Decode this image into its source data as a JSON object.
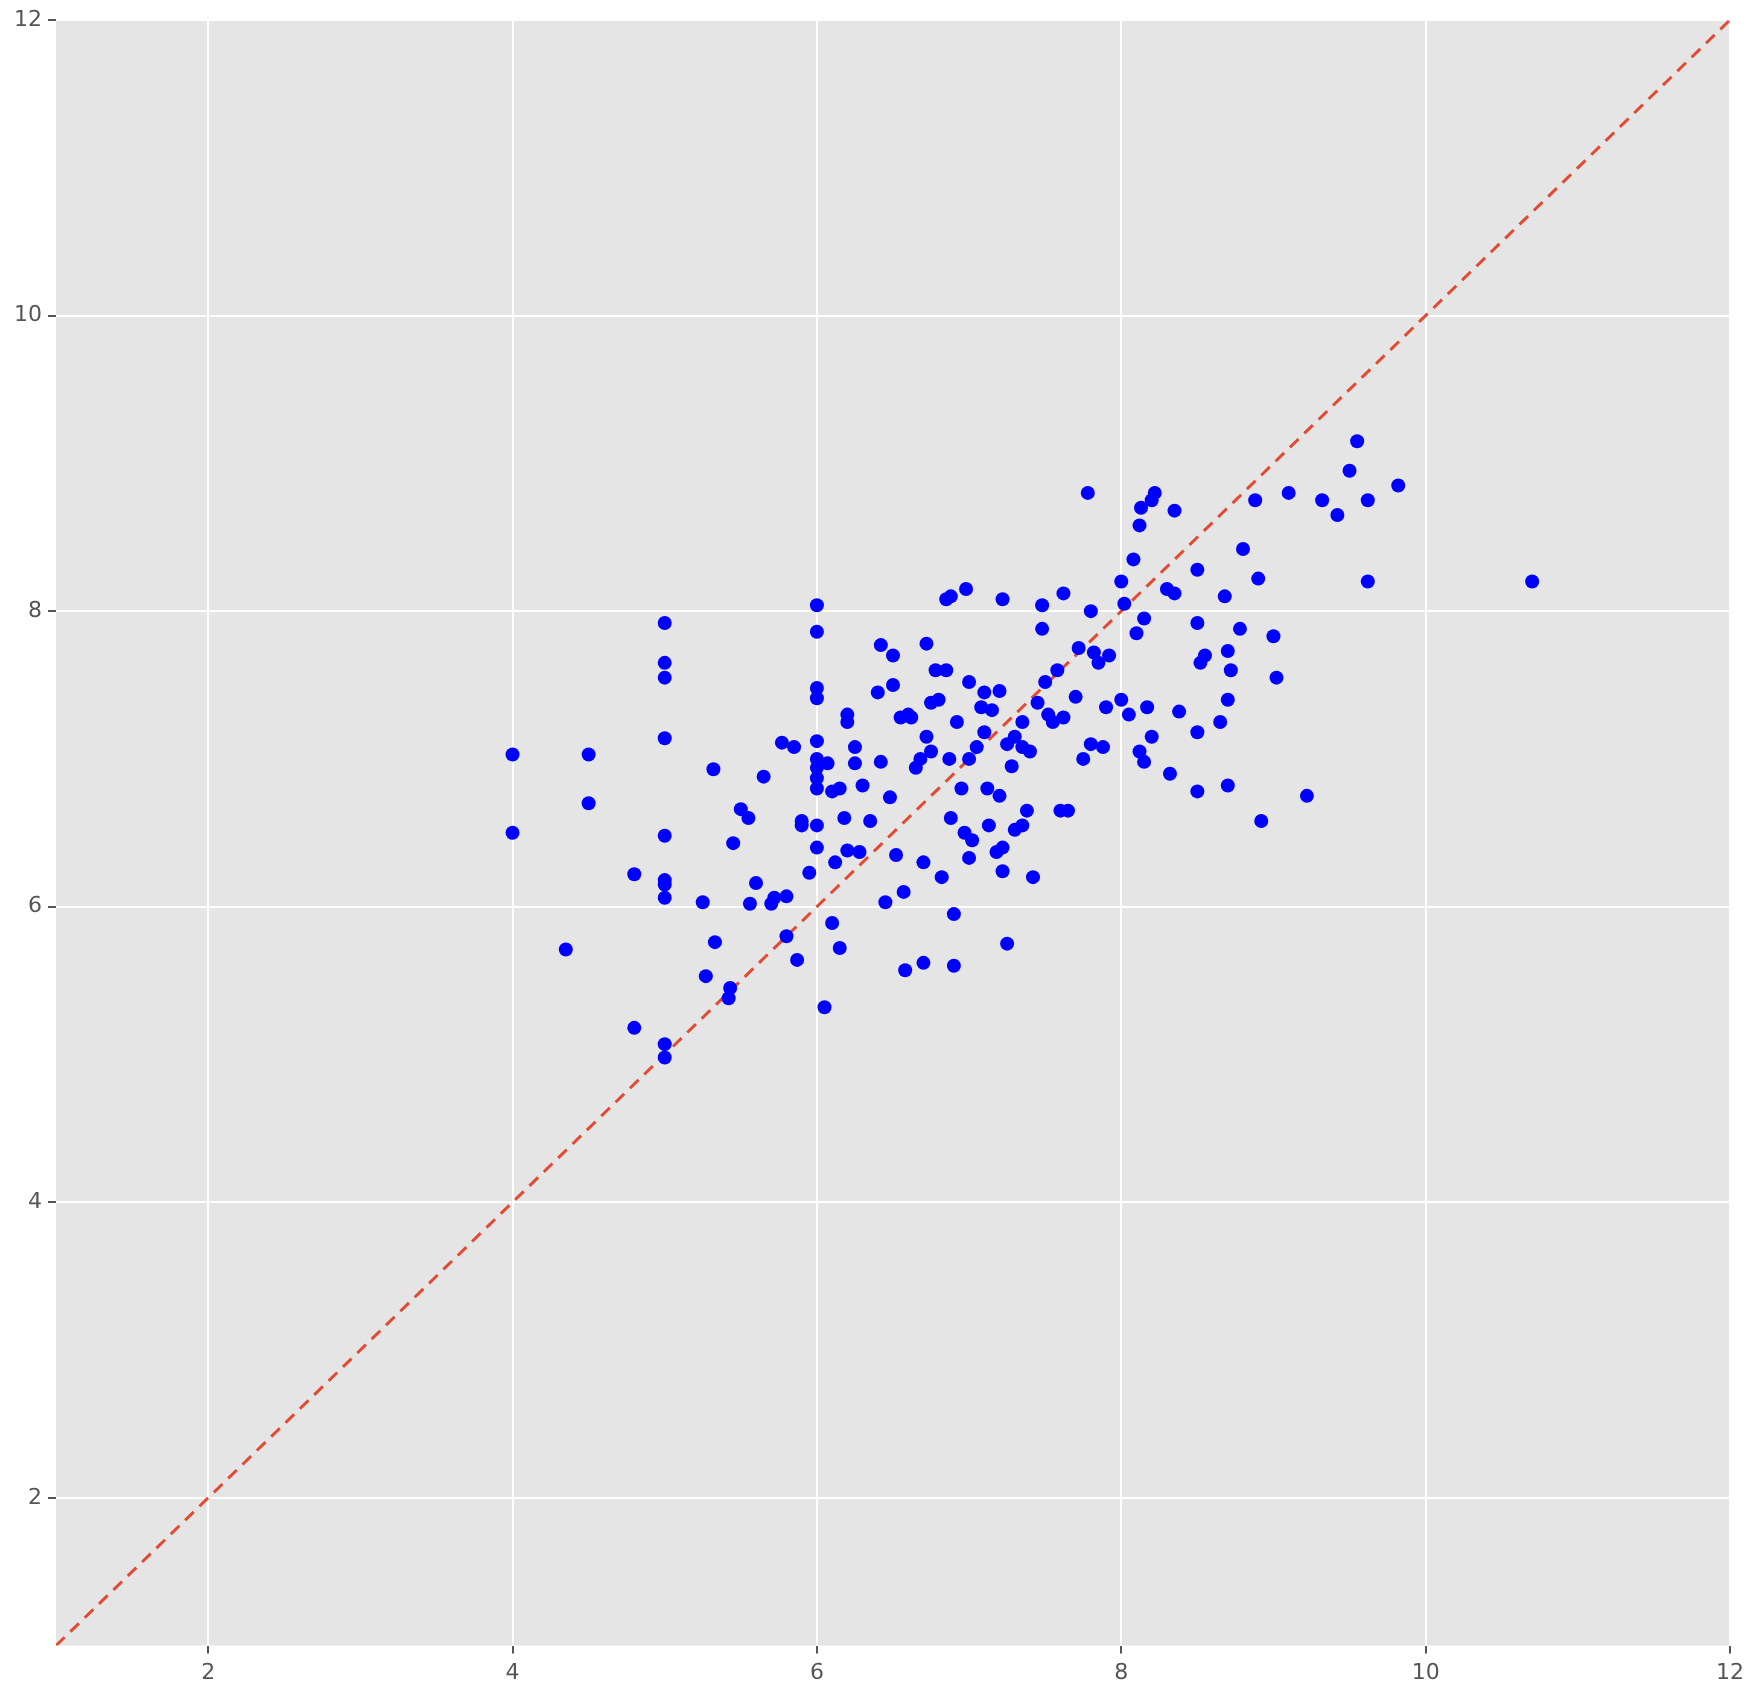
{
  "chart_data": {
    "type": "scatter",
    "xlim": [
      1,
      12
    ],
    "ylim": [
      1,
      12
    ],
    "xticks": [
      2,
      4,
      6,
      8,
      10,
      12
    ],
    "yticks": [
      2,
      4,
      6,
      8,
      10,
      12
    ],
    "grid": true,
    "legend": false,
    "marker": "circle",
    "series": [
      {
        "type": "scatter",
        "color": "#0000ff",
        "x": [
          4,
          4,
          4.5,
          4.5,
          4.35,
          4.8,
          4.8,
          5,
          5,
          5,
          5,
          5,
          5,
          5,
          5,
          5,
          5,
          5.25,
          5.27,
          5.32,
          5.33,
          5.42,
          5.43,
          5.45,
          5.5,
          5.55,
          5.56,
          5.6,
          5.65,
          5.7,
          5.72,
          5.77,
          5.8,
          5.8,
          5.85,
          5.87,
          5.9,
          5.9,
          5.95,
          6,
          6,
          6,
          6,
          6,
          6,
          6,
          6,
          6,
          6,
          6,
          6.05,
          6.07,
          6.1,
          6.1,
          6.12,
          6.15,
          6.15,
          6.18,
          6.2,
          6.2,
          6.2,
          6.25,
          6.25,
          6.28,
          6.3,
          6.35,
          6.4,
          6.42,
          6.42,
          6.45,
          6.48,
          6.5,
          6.5,
          6.52,
          6.55,
          6.57,
          6.58,
          6.6,
          6.62,
          6.65,
          6.68,
          6.7,
          6.7,
          6.72,
          6.72,
          6.75,
          6.75,
          6.78,
          6.8,
          6.82,
          6.85,
          6.88,
          6.85,
          6.87,
          6.88,
          6.9,
          6.9,
          6.92,
          6.95,
          6.97,
          6.98,
          7,
          7,
          7,
          7.02,
          7.05,
          7.08,
          7.1,
          7.1,
          7.12,
          7.13,
          7.15,
          7.18,
          7.2,
          7.2,
          7.22,
          7.22,
          7.22,
          7.25,
          7.25,
          7.28,
          7.3,
          7.3,
          7.35,
          7.35,
          7.35,
          7.38,
          7.4,
          7.42,
          7.45,
          7.48,
          7.48,
          7.5,
          7.52,
          7.55,
          7.58,
          7.6,
          7.62,
          7.62,
          7.65,
          7.7,
          7.72,
          7.75,
          7.78,
          7.8,
          7.8,
          7.82,
          7.85,
          7.88,
          7.9,
          7.92,
          8,
          8,
          8.02,
          8.05,
          8.08,
          8.1,
          8.12,
          8.12,
          8.13,
          8.15,
          8.15,
          8.17,
          8.2,
          8.2,
          8.22,
          8.3,
          8.32,
          8.35,
          8.35,
          8.38,
          8.5,
          8.5,
          8.5,
          8.5,
          8.52,
          8.55,
          8.65,
          8.68,
          8.7,
          8.7,
          8.7,
          8.72,
          8.78,
          8.8,
          8.88,
          8.9,
          8.92,
          9,
          9.02,
          9.1,
          9.22,
          9.32,
          9.42,
          9.5,
          9.55,
          9.62,
          9.62,
          9.82,
          10.7
        ],
        "values": [
          7.03,
          6.5,
          7.03,
          6.7,
          5.71,
          6.22,
          5.18,
          7.92,
          7.65,
          7.55,
          7.14,
          6.48,
          6.18,
          6.15,
          6.06,
          5.07,
          4.98,
          6.03,
          5.53,
          6.93,
          5.76,
          5.38,
          5.45,
          6.43,
          6.66,
          6.6,
          6.02,
          6.16,
          6.88,
          6.02,
          6.06,
          7.11,
          6.07,
          5.8,
          7.08,
          5.64,
          6.58,
          6.55,
          6.23,
          8.04,
          7.86,
          7.48,
          7.41,
          7.12,
          7,
          6.94,
          6.87,
          6.8,
          6.55,
          6.4,
          5.32,
          6.97,
          5.89,
          6.78,
          6.3,
          5.72,
          6.8,
          6.6,
          7.3,
          7.25,
          6.38,
          7.08,
          6.97,
          6.37,
          6.82,
          6.58,
          7.45,
          7.77,
          6.98,
          6.03,
          6.74,
          7.7,
          7.5,
          6.35,
          7.28,
          6.1,
          5.57,
          7.3,
          7.28,
          6.94,
          7,
          5.62,
          6.3,
          7.78,
          7.15,
          7.05,
          7.38,
          7.6,
          7.4,
          6.2,
          8.08,
          8.1,
          7.6,
          7,
          6.6,
          5.95,
          5.6,
          7.25,
          6.8,
          6.5,
          8.15,
          7.52,
          7,
          6.33,
          6.45,
          7.08,
          7.35,
          7.18,
          7.45,
          6.8,
          6.55,
          7.33,
          6.37,
          7.46,
          6.75,
          8.08,
          6.4,
          6.24,
          5.75,
          7.1,
          6.95,
          7.15,
          6.52,
          6.55,
          7.08,
          7.25,
          6.65,
          7.05,
          6.2,
          7.38,
          7.88,
          8.04,
          7.52,
          7.3,
          7.25,
          7.6,
          6.65,
          7.28,
          8.12,
          6.65,
          7.42,
          7.75,
          7,
          8.8,
          7.1,
          8,
          7.72,
          7.65,
          7.08,
          7.35,
          7.7,
          8.2,
          7.4,
          8.05,
          7.3,
          8.35,
          7.85,
          7.05,
          8.58,
          8.7,
          7.95,
          6.98,
          7.35,
          7.15,
          8.75,
          8.8,
          8.15,
          6.9,
          8.68,
          8.12,
          7.32,
          8.28,
          7.92,
          7.18,
          6.78,
          7.65,
          7.7,
          7.25,
          8.1,
          7.73,
          7.4,
          6.82,
          7.6,
          7.88,
          8.42,
          8.75,
          8.22,
          6.58,
          7.83,
          7.55,
          8.8,
          6.75,
          8.75,
          8.65,
          8.95,
          9.15,
          8.75,
          8.2,
          8.85,
          8.2
        ]
      },
      {
        "type": "line",
        "color": "#e24a33",
        "x": [
          1,
          12
        ],
        "values": [
          1,
          12
        ],
        "line_style": "dashed",
        "marker": "none"
      }
    ]
  }
}
